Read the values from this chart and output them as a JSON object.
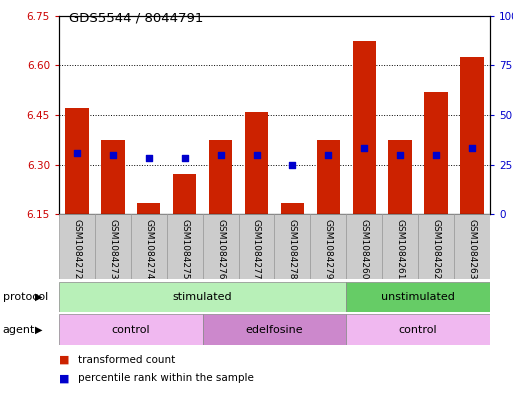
{
  "title": "GDS5544 / 8044791",
  "samples": [
    "GSM1084272",
    "GSM1084273",
    "GSM1084274",
    "GSM1084275",
    "GSM1084276",
    "GSM1084277",
    "GSM1084278",
    "GSM1084279",
    "GSM1084260",
    "GSM1084261",
    "GSM1084262",
    "GSM1084263"
  ],
  "bar_values": [
    6.47,
    6.375,
    6.185,
    6.27,
    6.375,
    6.46,
    6.185,
    6.375,
    6.675,
    6.375,
    6.52,
    6.625
  ],
  "bar_base": 6.15,
  "blue_dots": [
    6.335,
    6.33,
    6.32,
    6.32,
    6.33,
    6.33,
    6.3,
    6.33,
    6.35,
    6.33,
    6.33,
    6.35
  ],
  "ylim": [
    6.15,
    6.75
  ],
  "yticks_left": [
    6.15,
    6.3,
    6.45,
    6.6,
    6.75
  ],
  "yticks_right": [
    0,
    25,
    50,
    75,
    100
  ],
  "ylabel_left_color": "#cc0000",
  "ylabel_right_color": "#0000cc",
  "bar_color": "#cc2200",
  "dot_color": "#0000cc",
  "protocol_groups": [
    {
      "label": "stimulated",
      "start": 0,
      "end": 8,
      "color": "#b8f0b8"
    },
    {
      "label": "unstimulated",
      "start": 8,
      "end": 12,
      "color": "#66cc66"
    }
  ],
  "agent_groups": [
    {
      "label": "control",
      "start": 0,
      "end": 4,
      "color": "#f0b8f0"
    },
    {
      "label": "edelfosine",
      "start": 4,
      "end": 8,
      "color": "#cc88cc"
    },
    {
      "label": "control",
      "start": 8,
      "end": 12,
      "color": "#f0b8f0"
    }
  ],
  "legend_items": [
    {
      "label": "transformed count",
      "color": "#cc2200"
    },
    {
      "label": "percentile rank within the sample",
      "color": "#0000cc"
    }
  ],
  "bar_width": 0.65,
  "label_gray": "#cccccc",
  "label_gray_edge": "#999999"
}
